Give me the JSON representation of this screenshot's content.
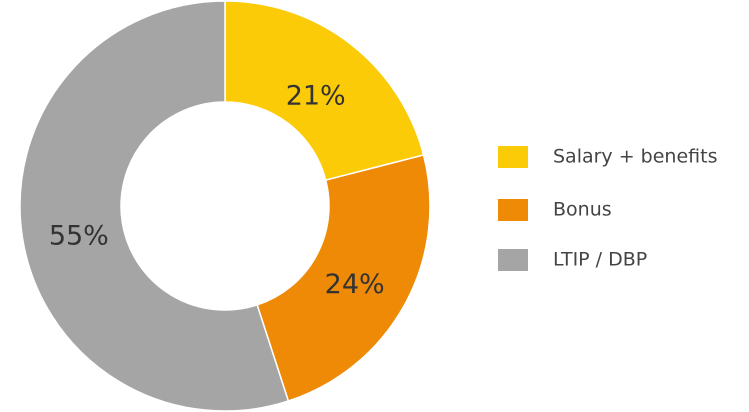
{
  "chart_data": {
    "type": "donut",
    "categories": [
      "Salary + benefits",
      "Bonus",
      "LTIP / DBP"
    ],
    "values": [
      21,
      24,
      55
    ],
    "value_labels": [
      "21%",
      "24%",
      "55%"
    ],
    "colors": [
      "#fbcb07",
      "#ee8a06",
      "#a5a5a5"
    ],
    "legend": "right"
  }
}
